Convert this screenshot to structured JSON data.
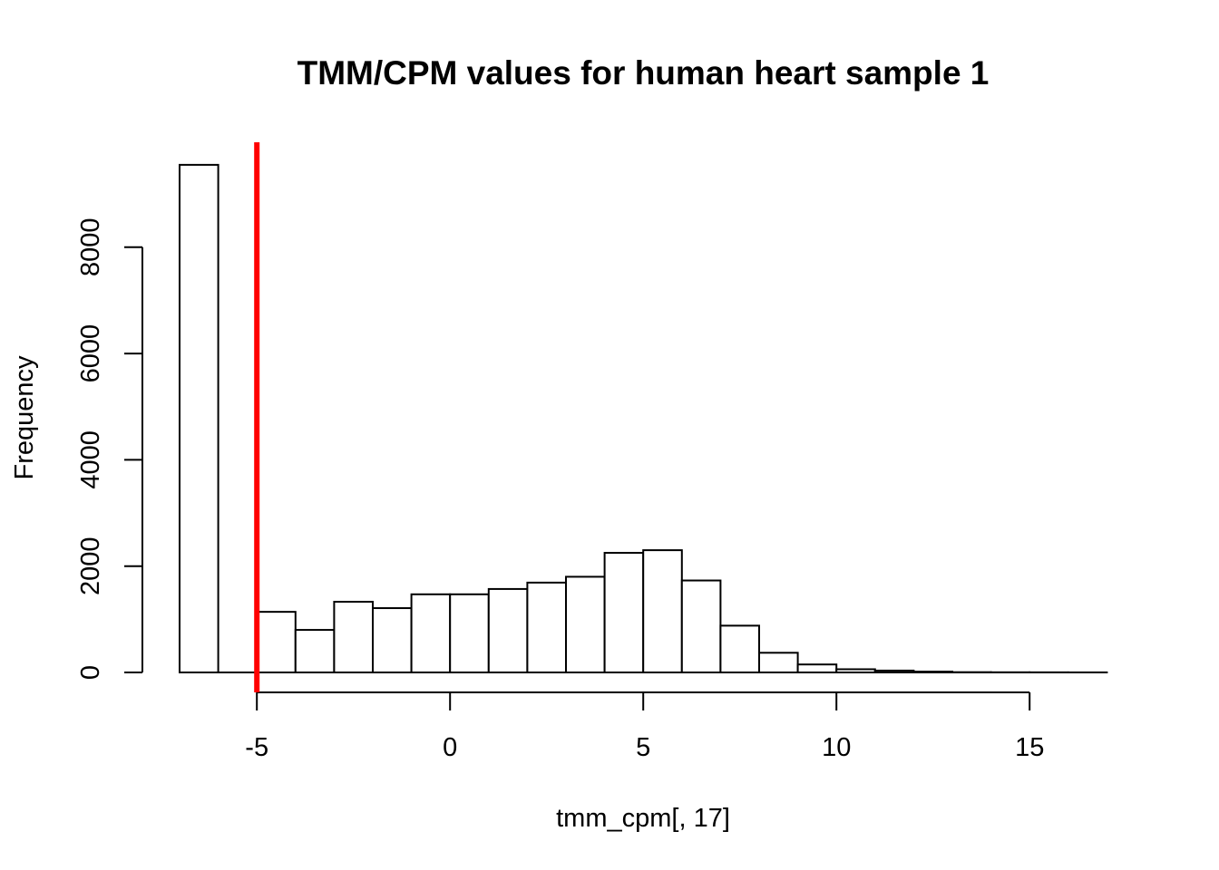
{
  "chart_data": {
    "type": "histogram",
    "title": "TMM/CPM values for human heart sample 1",
    "xlabel": "tmm_cpm[, 17]",
    "ylabel": "Frequency",
    "bin_width": 1,
    "bins": [
      {
        "x0": -7,
        "x1": -6,
        "count": 9550
      },
      {
        "x0": -6,
        "x1": -5,
        "count": 0
      },
      {
        "x0": -5,
        "x1": -4,
        "count": 1140
      },
      {
        "x0": -4,
        "x1": -3,
        "count": 800
      },
      {
        "x0": -3,
        "x1": -2,
        "count": 1330
      },
      {
        "x0": -2,
        "x1": -1,
        "count": 1210
      },
      {
        "x0": -1,
        "x1": 0,
        "count": 1470
      },
      {
        "x0": 0,
        "x1": 1,
        "count": 1470
      },
      {
        "x0": 1,
        "x1": 2,
        "count": 1570
      },
      {
        "x0": 2,
        "x1": 3,
        "count": 1690
      },
      {
        "x0": 3,
        "x1": 4,
        "count": 1800
      },
      {
        "x0": 4,
        "x1": 5,
        "count": 2250
      },
      {
        "x0": 5,
        "x1": 6,
        "count": 2300
      },
      {
        "x0": 6,
        "x1": 7,
        "count": 1730
      },
      {
        "x0": 7,
        "x1": 8,
        "count": 880
      },
      {
        "x0": 8,
        "x1": 9,
        "count": 370
      },
      {
        "x0": 9,
        "x1": 10,
        "count": 150
      },
      {
        "x0": 10,
        "x1": 11,
        "count": 60
      },
      {
        "x0": 11,
        "x1": 12,
        "count": 35
      },
      {
        "x0": 12,
        "x1": 13,
        "count": 15
      },
      {
        "x0": 13,
        "x1": 14,
        "count": 5
      },
      {
        "x0": 14,
        "x1": 15,
        "count": 3
      },
      {
        "x0": 15,
        "x1": 16,
        "count": 2
      },
      {
        "x0": 16,
        "x1": 17,
        "count": 1
      }
    ],
    "x_ticks": [
      -5,
      0,
      5,
      10,
      15
    ],
    "x_tick_labels": [
      "-5",
      "0",
      "5",
      "10",
      "15"
    ],
    "y_ticks": [
      0,
      2000,
      4000,
      6000,
      8000
    ],
    "y_tick_labels": [
      "0",
      "2000",
      "4000",
      "6000",
      "8000"
    ],
    "xlim": [
      -7,
      17
    ],
    "ylim": [
      0,
      9550
    ],
    "reference_line": {
      "x": -5,
      "color": "#ff0000"
    },
    "grid": false,
    "bar_fill": "#ffffff",
    "bar_stroke": "#000000"
  }
}
